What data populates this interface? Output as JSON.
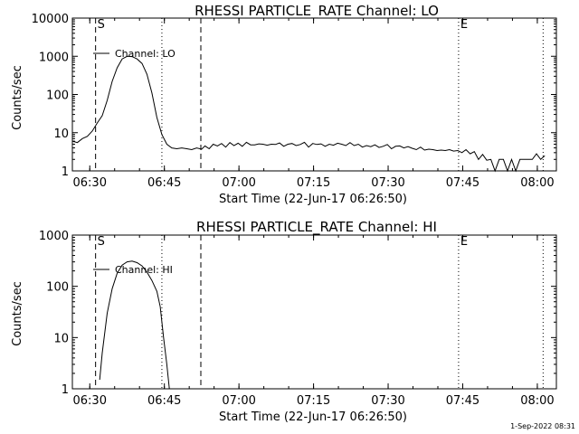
{
  "footer_timestamp": "1-Sep-2022 08:31",
  "chart_data": [
    {
      "type": "line",
      "title": "RHESSI PARTICLE_RATE Channel: LO",
      "ylabel": "Counts/sec",
      "xlabel": "Start Time (22-Jun-17 06:26:50)",
      "yscale": "log",
      "ylim": [
        1,
        10000
      ],
      "xlim": [
        "06:26:50",
        "08:04:10"
      ],
      "y_tick_labels": [
        "1",
        "10",
        "100",
        "1000",
        "10000"
      ],
      "y_ticks": [
        1,
        10,
        100,
        1000,
        10000
      ],
      "x_tick_labels": [
        "06:30",
        "06:45",
        "07:00",
        "07:15",
        "07:30",
        "07:45",
        "08:00"
      ],
      "x_ticks_min": [
        210,
        1110,
        2010,
        2910,
        3810,
        4710,
        5610
      ],
      "legend": "Channel: LO",
      "legend_placement": "top-left",
      "markers": [
        {
          "label": "S",
          "x": 280,
          "style": "dashed"
        },
        {
          "label": "",
          "x": 1080,
          "style": "dotted"
        },
        {
          "label": "",
          "x": 1550,
          "style": "dashed"
        },
        {
          "label": "E",
          "x": 4660,
          "style": "dotted"
        },
        {
          "label": "",
          "x": 5680,
          "style": "dotted"
        }
      ],
      "series": [
        {
          "x": [
            0,
            60,
            120,
            180,
            240,
            300,
            360,
            420,
            480,
            540,
            600,
            660,
            720,
            780,
            840,
            900,
            960,
            1020,
            1080,
            1140,
            1200,
            1260,
            1320,
            1380,
            1440,
            1500,
            1560,
            1600,
            1650,
            1700,
            1750,
            1800,
            1850,
            1900,
            1950,
            2000,
            2050,
            2100,
            2150,
            2200,
            2250,
            2300,
            2350,
            2400,
            2450,
            2500,
            2550,
            2600,
            2650,
            2700,
            2750,
            2800,
            2850,
            2900,
            2950,
            3000,
            3050,
            3100,
            3150,
            3200,
            3250,
            3300,
            3350,
            3400,
            3450,
            3500,
            3550,
            3600,
            3650,
            3700,
            3750,
            3800,
            3850,
            3900,
            3950,
            4000,
            4050,
            4100,
            4150,
            4200,
            4250,
            4300,
            4350,
            4400,
            4450,
            4500,
            4550,
            4600,
            4650,
            4700,
            4750,
            4800,
            4850,
            4900,
            4950,
            5000,
            5050,
            5100,
            5150,
            5200,
            5250,
            5300,
            5350,
            5400,
            5450,
            5500,
            5550,
            5600,
            5650,
            5700
          ],
          "values": [
            6,
            5.5,
            7,
            8,
            11,
            18,
            28,
            70,
            220,
            500,
            850,
            1000,
            980,
            850,
            650,
            340,
            110,
            25,
            9,
            5,
            4,
            3.8,
            4,
            3.8,
            3.6,
            4,
            3.7,
            4.5,
            3.8,
            5,
            4.5,
            5.2,
            4.2,
            5.5,
            4.6,
            5.3,
            4.4,
            5.6,
            4.8,
            4.8,
            5.1,
            5,
            4.7,
            5,
            4.9,
            5.4,
            4.4,
            5,
            5.2,
            4.6,
            4.9,
            5.6,
            4.2,
            5.2,
            4.9,
            5.1,
            4.4,
            5,
            4.7,
            5.3,
            5,
            4.6,
            5.5,
            4.6,
            5,
            4.2,
            4.6,
            4.3,
            4.8,
            4.1,
            4.4,
            4.9,
            3.8,
            4.4,
            4.5,
            4,
            4.3,
            3.9,
            3.6,
            4.2,
            3.5,
            3.7,
            3.6,
            3.4,
            3.5,
            3.4,
            3.6,
            3.3,
            3.4,
            3,
            3.6,
            2.8,
            3.2,
            2,
            2.7,
            1.9,
            2,
            1,
            2,
            2,
            1,
            2,
            1,
            2,
            2,
            2,
            2,
            2.8,
            2,
            2.5
          ]
        }
      ]
    },
    {
      "type": "line",
      "title": "RHESSI PARTICLE_RATE Channel: HI",
      "ylabel": "Counts/sec",
      "xlabel": "Start Time (22-Jun-17 06:26:50)",
      "yscale": "log",
      "ylim": [
        1,
        1000
      ],
      "xlim": [
        "06:26:50",
        "08:04:10"
      ],
      "y_tick_labels": [
        "1",
        "10",
        "100",
        "1000"
      ],
      "y_ticks": [
        1,
        10,
        100,
        1000
      ],
      "x_tick_labels": [
        "06:30",
        "06:45",
        "07:00",
        "07:15",
        "07:30",
        "07:45",
        "08:00"
      ],
      "x_ticks_min": [
        210,
        1110,
        2010,
        2910,
        3810,
        4710,
        5610
      ],
      "legend": "Channel: HI",
      "legend_placement": "top-left",
      "markers": [
        {
          "label": "S",
          "x": 280,
          "style": "dashed"
        },
        {
          "label": "",
          "x": 1080,
          "style": "dotted"
        },
        {
          "label": "",
          "x": 1550,
          "style": "dashed"
        },
        {
          "label": "E",
          "x": 4660,
          "style": "dotted"
        },
        {
          "label": "",
          "x": 5680,
          "style": "dotted"
        }
      ],
      "series": [
        {
          "x": [
            330,
            360,
            420,
            480,
            540,
            600,
            660,
            720,
            780,
            840,
            900,
            960,
            1020,
            1060,
            1100,
            1140,
            1170
          ],
          "values": [
            1.5,
            5,
            30,
            90,
            180,
            260,
            300,
            310,
            290,
            250,
            190,
            130,
            80,
            40,
            10,
            3,
            1
          ]
        }
      ]
    }
  ]
}
